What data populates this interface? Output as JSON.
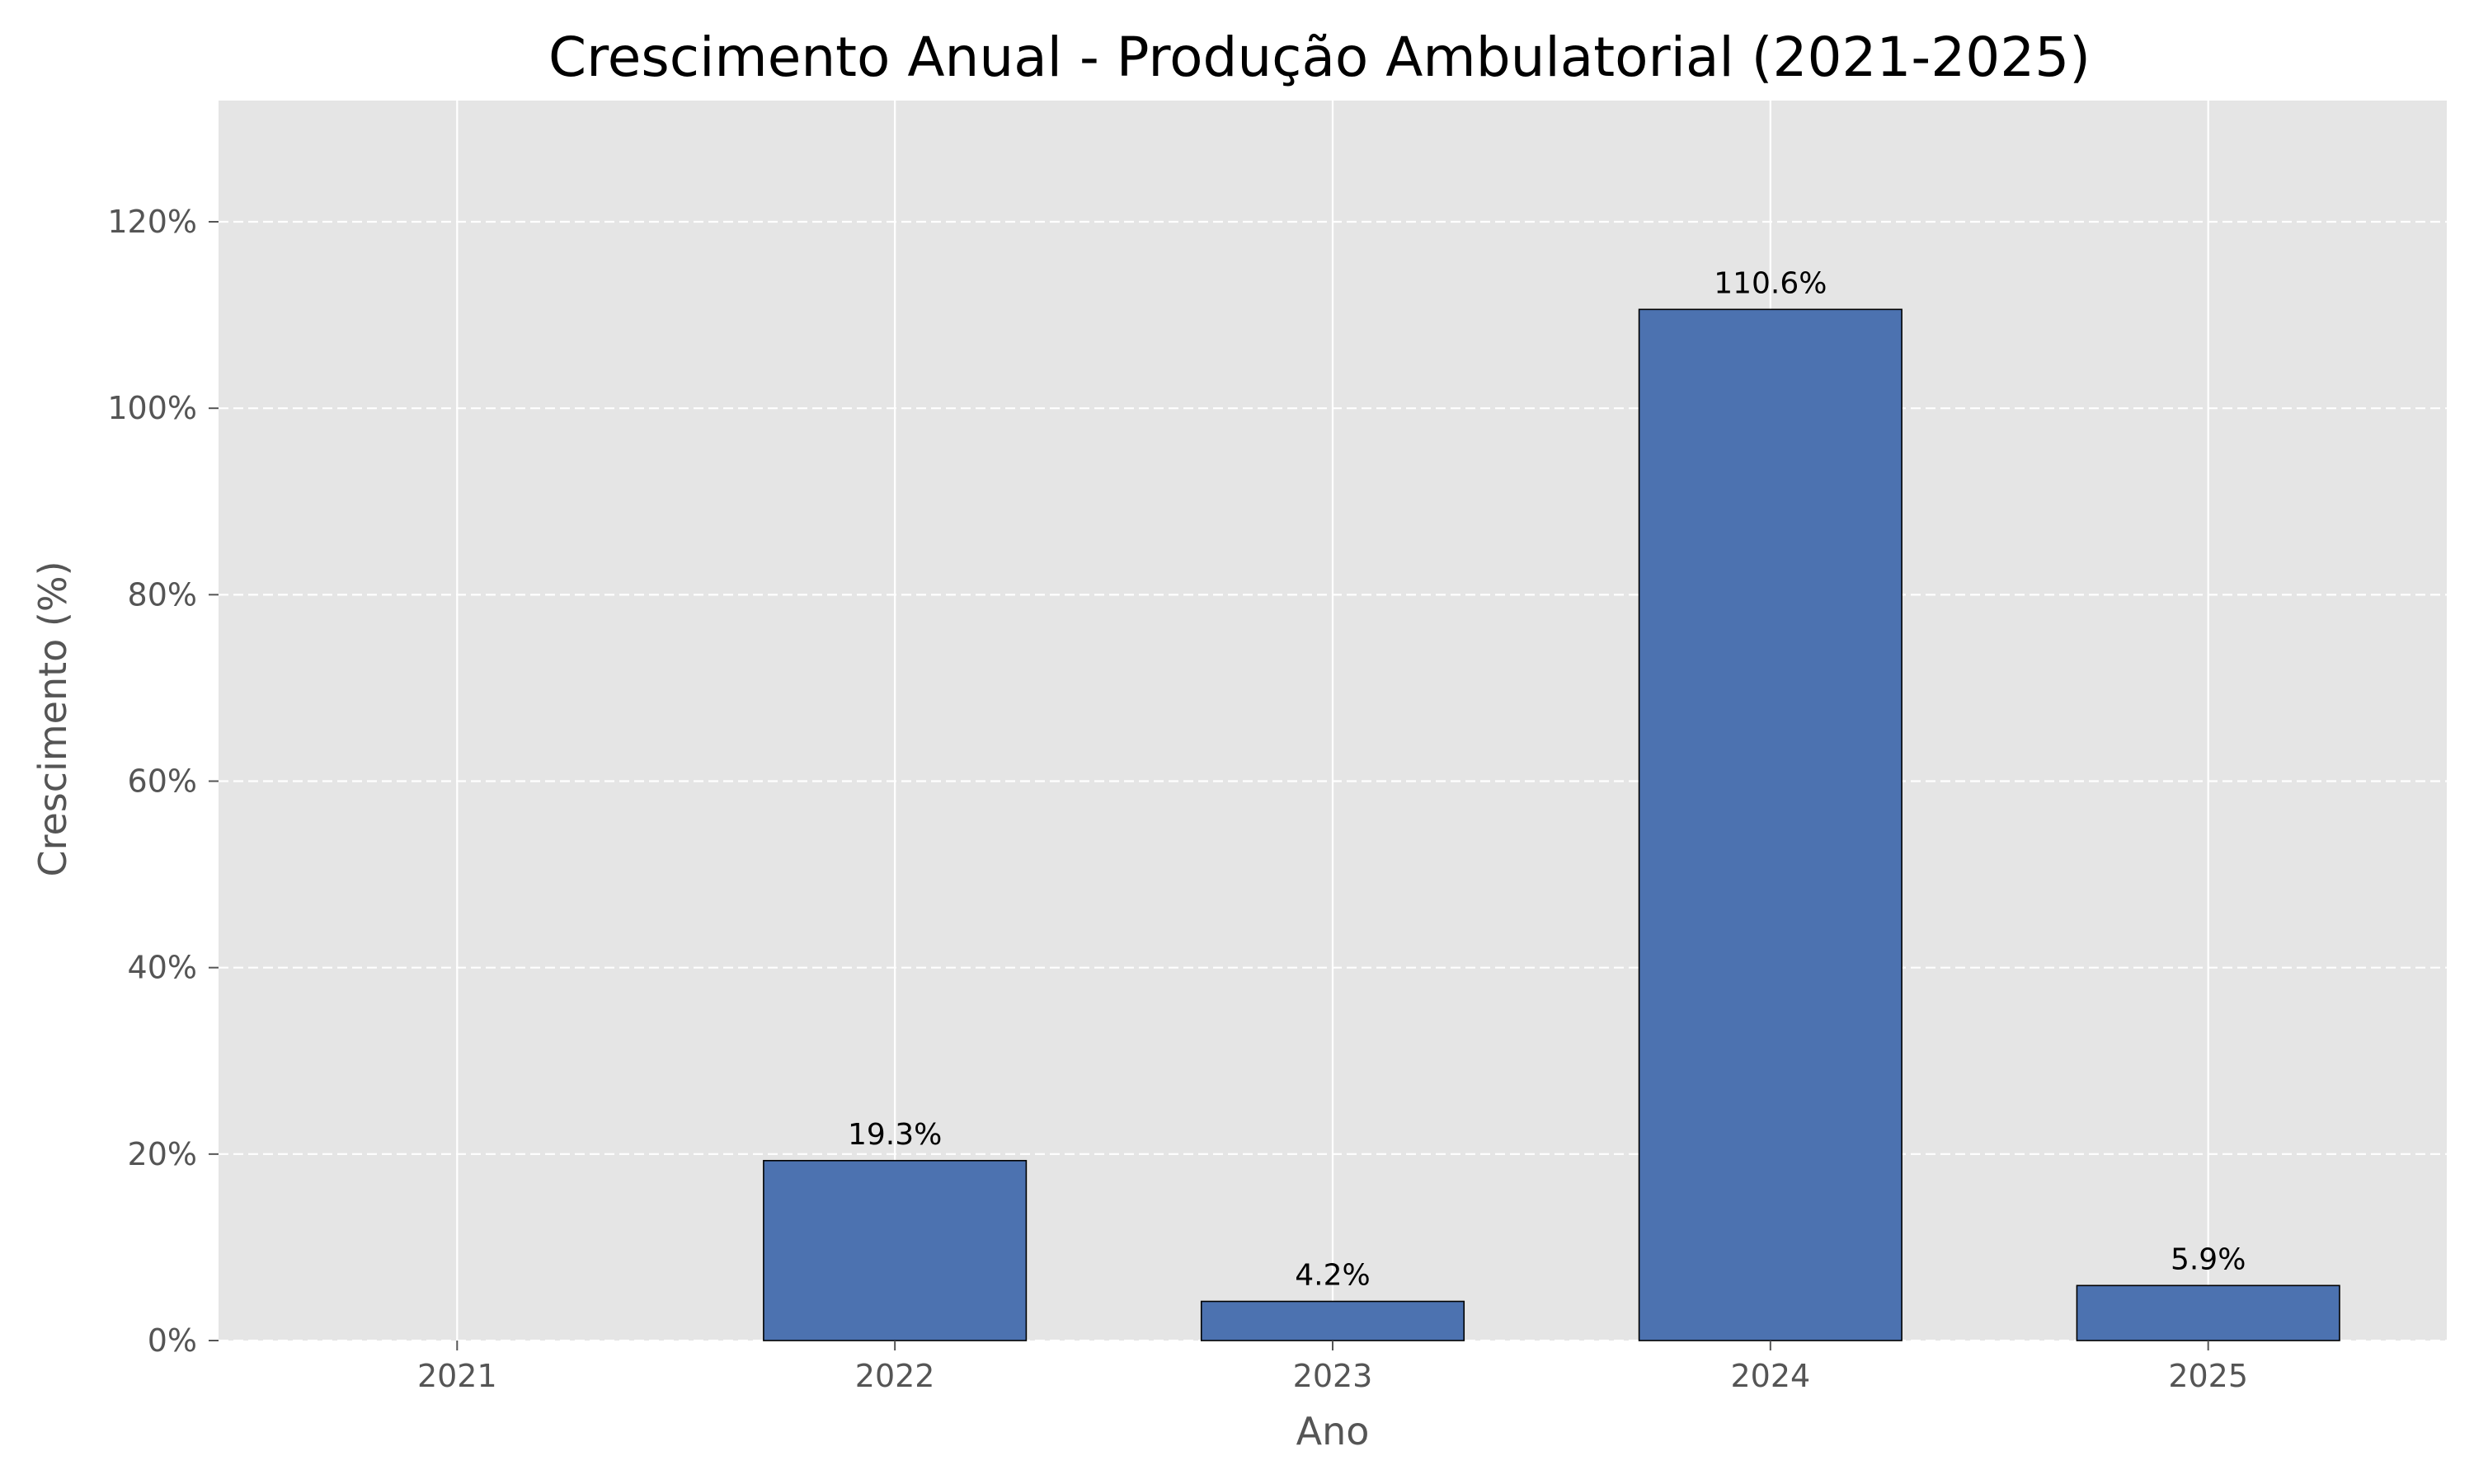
{
  "chart_data": {
    "type": "bar",
    "title": "Crescimento Anual - Produção Ambulatorial (2021-2025)",
    "xlabel": "Ano",
    "ylabel": "Crescimento (%)",
    "categories": [
      "2021",
      "2022",
      "2023",
      "2024",
      "2025"
    ],
    "values": [
      null,
      19.3,
      4.2,
      110.6,
      5.9
    ],
    "data_labels": [
      "",
      "19.3%",
      "4.2%",
      "110.6%",
      "5.9%"
    ],
    "ylim": [
      0,
      133
    ],
    "yticks": [
      0,
      20,
      40,
      60,
      80,
      100,
      120
    ],
    "ytick_labels": [
      "0%",
      "20%",
      "40%",
      "60%",
      "80%",
      "100%",
      "120%"
    ],
    "grid": {
      "x": "solid",
      "y": "dashed"
    },
    "colors": {
      "bar": "#4C72B0",
      "bar_edge": "#000000",
      "plot_background": "#E5E5E5",
      "grid": "#FFFFFF"
    }
  }
}
